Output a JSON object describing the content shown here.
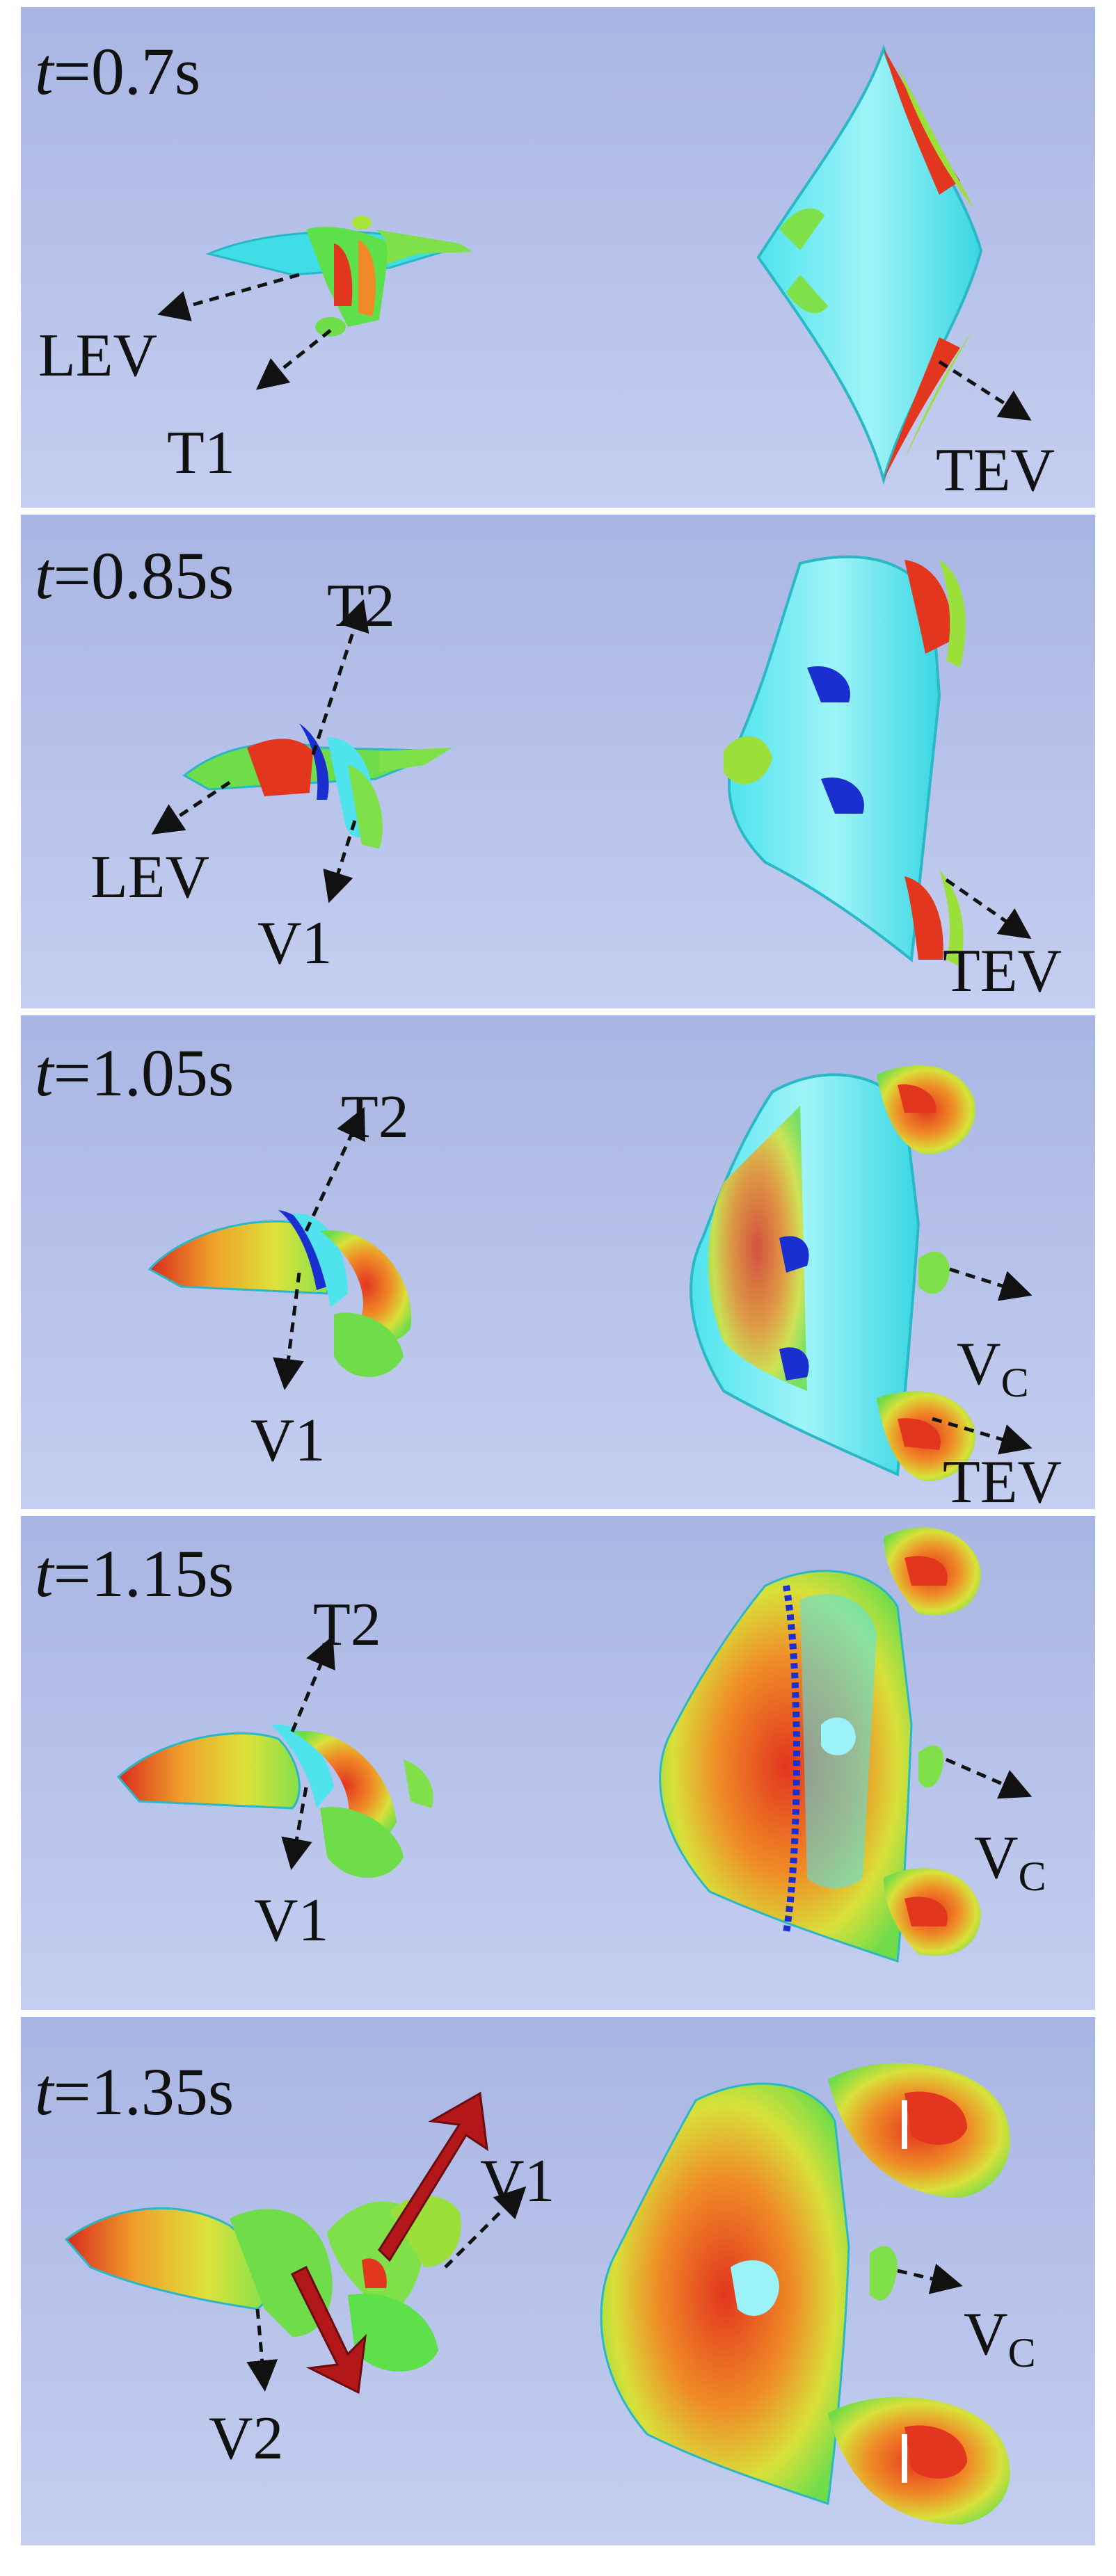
{
  "panels": [
    {
      "time_var": "t",
      "time_rest": "=0.7s",
      "labels": [
        "LEV",
        "T1"
      ],
      "right_labels": [
        "TEV"
      ]
    },
    {
      "time_var": "t",
      "time_rest": "=0.85s",
      "labels": [
        "T2",
        "LEV",
        "V1"
      ],
      "right_labels": [
        "TEV"
      ]
    },
    {
      "time_var": "t",
      "time_rest": "=1.05s",
      "labels": [
        "T2",
        "V1"
      ],
      "right_labels": [
        "V",
        "C",
        "TEV"
      ]
    },
    {
      "time_var": "t",
      "time_rest": "=1.15s",
      "labels": [
        "T2",
        "V1"
      ],
      "right_labels": [
        "V",
        "C"
      ]
    },
    {
      "time_var": "t",
      "time_rest": "=1.35s",
      "labels": [
        "V1",
        "V2"
      ],
      "right_labels": [
        "V",
        "C"
      ]
    }
  ],
  "colors": {
    "panel_top": "#a9b6e3",
    "panel_bottom": "#c3cdf0",
    "cyan": "#39e0e8",
    "green": "#7fe04a",
    "yellow": "#e6e23a",
    "red": "#e2361f",
    "blue": "#1b2fd0",
    "big_arrow": "#b3171a"
  }
}
